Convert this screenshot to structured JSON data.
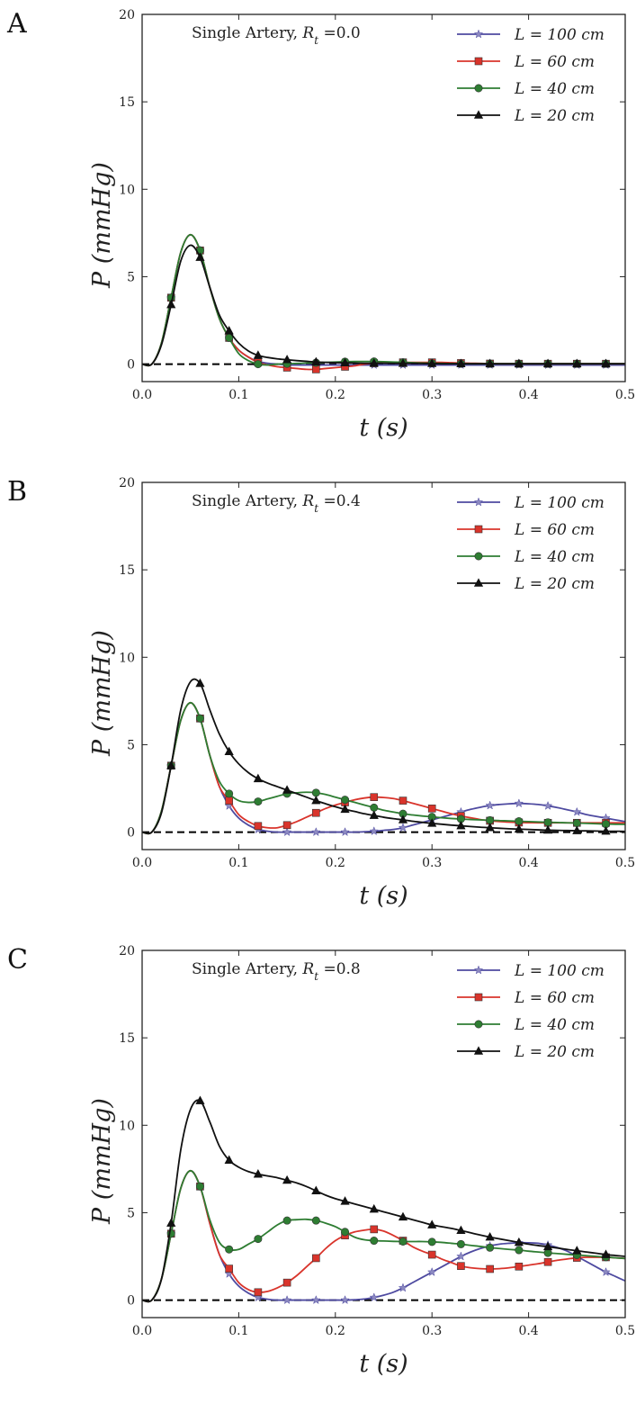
{
  "figure": {
    "tick_format": {
      "x_decimals": 1,
      "y_decimals": 0
    },
    "panels": [
      {
        "panel_label": "A",
        "annotation": "Single Artery, R_t =0.0"
      },
      {
        "panel_label": "B",
        "annotation": "Single Artery, R_t =0.4"
      },
      {
        "panel_label": "C",
        "annotation": "Single Artery, R_t =0.8"
      }
    ]
  },
  "chart_data": [
    {
      "type": "line",
      "title": "Single Artery, R_t =0.0",
      "xlabel": "t (s)",
      "ylabel": "P (mmHg)",
      "xlim": [
        0,
        0.5
      ],
      "ylim": [
        -1,
        20
      ],
      "x_ticks": [
        0.0,
        0.1,
        0.2,
        0.3,
        0.4,
        0.5
      ],
      "y_ticks": [
        0,
        5,
        10,
        15,
        20
      ],
      "grid": false,
      "legend_position": "top-right",
      "reference_line": {
        "y": 0,
        "style": "dashed",
        "color": "#000000"
      },
      "x": [
        0,
        0.01,
        0.02,
        0.03,
        0.04,
        0.05,
        0.06,
        0.07,
        0.08,
        0.09,
        0.1,
        0.11,
        0.12,
        0.13,
        0.14,
        0.15,
        0.16,
        0.17,
        0.18,
        0.19,
        0.2,
        0.21,
        0.22,
        0.23,
        0.24,
        0.25,
        0.26,
        0.27,
        0.28,
        0.29,
        0.3,
        0.31,
        0.32,
        0.33,
        0.34,
        0.35,
        0.36,
        0.37,
        0.38,
        0.39,
        0.4,
        0.41,
        0.42,
        0.43,
        0.44,
        0.45,
        0.46,
        0.47,
        0.48,
        0.49,
        0.5
      ],
      "marker_x": [
        0.03,
        0.06,
        0.09,
        0.12,
        0.15,
        0.18,
        0.21,
        0.24,
        0.27,
        0.3,
        0.33,
        0.36,
        0.39,
        0.42,
        0.45,
        0.48
      ],
      "series": [
        {
          "name": "L = 100 cm",
          "color": "#4e4aa0",
          "marker": "star",
          "values": [
            0,
            0,
            1.2,
            3.8,
            6.4,
            7.4,
            6.5,
            4.4,
            2.6,
            1.5,
            0.8,
            0.4,
            0.15,
            0.05,
            0,
            -0.05,
            -0.05,
            -0.05,
            -0.05,
            -0.05,
            -0.05,
            -0.05,
            -0.05,
            -0.05,
            -0.05,
            -0.05,
            -0.05,
            -0.05,
            -0.05,
            -0.05,
            -0.05,
            -0.05,
            -0.05,
            -0.05,
            -0.05,
            -0.05,
            -0.05,
            -0.05,
            -0.05,
            -0.05,
            -0.05,
            -0.05,
            -0.05,
            -0.05,
            -0.05,
            -0.05,
            -0.05,
            -0.05,
            -0.05,
            -0.05,
            -0.05
          ]
        },
        {
          "name": "L = 60 cm",
          "color": "#d9342b",
          "marker": "square",
          "values": [
            0,
            0,
            1.2,
            3.8,
            6.4,
            7.4,
            6.5,
            4.4,
            2.6,
            1.5,
            0.8,
            0.4,
            0.1,
            -0.05,
            -0.15,
            -0.2,
            -0.25,
            -0.3,
            -0.3,
            -0.25,
            -0.2,
            -0.15,
            -0.1,
            0,
            0.05,
            0.1,
            0.1,
            0.1,
            0.1,
            0.1,
            0.1,
            0.1,
            0.08,
            0.06,
            0.05,
            0.04,
            0.03,
            0.02,
            0.02,
            0.02,
            0.02,
            0.02,
            0.02,
            0.02,
            0.02,
            0.02,
            0.02,
            0.02,
            0.02,
            0.02,
            0.02
          ]
        },
        {
          "name": "L = 40 cm",
          "color": "#2e7d32",
          "marker": "circle",
          "values": [
            0,
            0,
            1.2,
            3.8,
            6.4,
            7.4,
            6.5,
            4.4,
            2.6,
            1.5,
            0.6,
            0.2,
            0,
            -0.05,
            0,
            0.02,
            0.04,
            0.06,
            0.08,
            0.1,
            0.12,
            0.14,
            0.15,
            0.15,
            0.15,
            0.14,
            0.12,
            0.1,
            0.08,
            0.06,
            0.05,
            0.04,
            0.03,
            0.02,
            0.02,
            0.02,
            0.02,
            0.02,
            0.02,
            0.02,
            0.02,
            0.02,
            0.02,
            0.02,
            0.02,
            0.02,
            0.02,
            0.02,
            0.02,
            0.02,
            0.02
          ]
        },
        {
          "name": "L = 20 cm",
          "color": "#111111",
          "marker": "triangle",
          "values": [
            0,
            0,
            1.1,
            3.4,
            5.9,
            6.8,
            6.1,
            4.4,
            2.8,
            1.9,
            1.2,
            0.75,
            0.5,
            0.38,
            0.3,
            0.25,
            0.2,
            0.16,
            0.12,
            0.1,
            0.08,
            0.07,
            0.06,
            0.05,
            0.05,
            0.05,
            0.04,
            0.04,
            0.04,
            0.03,
            0.03,
            0.02,
            0.02,
            0.02,
            0.02,
            0.02,
            0.02,
            0.02,
            0.02,
            0.02,
            0.02,
            0.02,
            0.02,
            0.02,
            0.02,
            0.02,
            0.02,
            0.02,
            0.02,
            0.02,
            0.02
          ]
        }
      ]
    },
    {
      "type": "line",
      "title": "Single Artery, R_t =0.4",
      "xlabel": "t (s)",
      "ylabel": "P (mmHg)",
      "xlim": [
        0,
        0.5
      ],
      "ylim": [
        -1,
        20
      ],
      "x_ticks": [
        0.0,
        0.1,
        0.2,
        0.3,
        0.4,
        0.5
      ],
      "y_ticks": [
        0,
        5,
        10,
        15,
        20
      ],
      "grid": false,
      "legend_position": "top-right",
      "reference_line": {
        "y": 0,
        "style": "dashed",
        "color": "#000000"
      },
      "x": [
        0,
        0.01,
        0.02,
        0.03,
        0.04,
        0.05,
        0.06,
        0.07,
        0.08,
        0.09,
        0.1,
        0.11,
        0.12,
        0.13,
        0.14,
        0.15,
        0.16,
        0.17,
        0.18,
        0.19,
        0.2,
        0.21,
        0.22,
        0.23,
        0.24,
        0.25,
        0.26,
        0.27,
        0.28,
        0.29,
        0.3,
        0.31,
        0.32,
        0.33,
        0.34,
        0.35,
        0.36,
        0.37,
        0.38,
        0.39,
        0.4,
        0.41,
        0.42,
        0.43,
        0.44,
        0.45,
        0.46,
        0.47,
        0.48,
        0.49,
        0.5
      ],
      "marker_x": [
        0.03,
        0.06,
        0.09,
        0.12,
        0.15,
        0.18,
        0.21,
        0.24,
        0.27,
        0.3,
        0.33,
        0.36,
        0.39,
        0.42,
        0.45,
        0.48
      ],
      "series": [
        {
          "name": "L = 100 cm",
          "color": "#4e4aa0",
          "marker": "star",
          "values": [
            0,
            0,
            1.2,
            3.8,
            6.4,
            7.4,
            6.5,
            4.4,
            2.6,
            1.5,
            0.8,
            0.4,
            0.15,
            0.05,
            0,
            0,
            0,
            0,
            0,
            0,
            0,
            0,
            0,
            0.02,
            0.05,
            0.1,
            0.15,
            0.25,
            0.4,
            0.55,
            0.7,
            0.85,
            1.0,
            1.15,
            1.3,
            1.42,
            1.52,
            1.58,
            1.62,
            1.64,
            1.62,
            1.58,
            1.5,
            1.4,
            1.28,
            1.15,
            1.0,
            0.9,
            0.8,
            0.7,
            0.6
          ]
        },
        {
          "name": "L = 60 cm",
          "color": "#d9342b",
          "marker": "square",
          "values": [
            0,
            0,
            1.2,
            3.8,
            6.4,
            7.4,
            6.5,
            4.4,
            2.6,
            1.8,
            1.0,
            0.6,
            0.35,
            0.25,
            0.25,
            0.4,
            0.6,
            0.85,
            1.1,
            1.35,
            1.55,
            1.7,
            1.85,
            1.95,
            2.0,
            1.98,
            1.92,
            1.8,
            1.65,
            1.5,
            1.35,
            1.2,
            1.05,
            0.92,
            0.82,
            0.72,
            0.65,
            0.6,
            0.57,
            0.55,
            0.54,
            0.53,
            0.53,
            0.53,
            0.53,
            0.53,
            0.53,
            0.53,
            0.53,
            0.53,
            0.53
          ]
        },
        {
          "name": "L = 40 cm",
          "color": "#2e7d32",
          "marker": "circle",
          "values": [
            0,
            0,
            1.2,
            3.8,
            6.4,
            7.4,
            6.5,
            4.4,
            2.9,
            2.2,
            1.8,
            1.7,
            1.75,
            1.9,
            2.05,
            2.2,
            2.25,
            2.28,
            2.25,
            2.15,
            2.0,
            1.85,
            1.7,
            1.55,
            1.4,
            1.25,
            1.15,
            1.05,
            0.98,
            0.92,
            0.87,
            0.82,
            0.78,
            0.75,
            0.72,
            0.7,
            0.68,
            0.66,
            0.64,
            0.62,
            0.6,
            0.58,
            0.56,
            0.55,
            0.53,
            0.52,
            0.5,
            0.48,
            0.46,
            0.45,
            0.44
          ]
        },
        {
          "name": "L = 20 cm",
          "color": "#111111",
          "marker": "triangle",
          "values": [
            0,
            0,
            1.1,
            3.8,
            7.0,
            8.6,
            8.5,
            7.0,
            5.6,
            4.6,
            3.9,
            3.4,
            3.05,
            2.8,
            2.6,
            2.4,
            2.2,
            2.0,
            1.8,
            1.62,
            1.45,
            1.3,
            1.18,
            1.05,
            0.95,
            0.85,
            0.77,
            0.7,
            0.62,
            0.56,
            0.5,
            0.45,
            0.4,
            0.36,
            0.32,
            0.28,
            0.25,
            0.22,
            0.19,
            0.17,
            0.15,
            0.13,
            0.11,
            0.1,
            0.09,
            0.08,
            0.07,
            0.06,
            0.05,
            0.05,
            0.04
          ]
        }
      ]
    },
    {
      "type": "line",
      "title": "Single Artery, R_t =0.8",
      "xlabel": "t (s)",
      "ylabel": "P (mmHg)",
      "xlim": [
        0,
        0.5
      ],
      "ylim": [
        -1,
        20
      ],
      "x_ticks": [
        0.0,
        0.1,
        0.2,
        0.3,
        0.4,
        0.5
      ],
      "y_ticks": [
        0,
        5,
        10,
        15,
        20
      ],
      "grid": false,
      "legend_position": "top-right",
      "reference_line": {
        "y": 0,
        "style": "dashed",
        "color": "#000000"
      },
      "x": [
        0,
        0.01,
        0.02,
        0.03,
        0.04,
        0.05,
        0.06,
        0.07,
        0.08,
        0.09,
        0.1,
        0.11,
        0.12,
        0.13,
        0.14,
        0.15,
        0.16,
        0.17,
        0.18,
        0.19,
        0.2,
        0.21,
        0.22,
        0.23,
        0.24,
        0.25,
        0.26,
        0.27,
        0.28,
        0.29,
        0.3,
        0.31,
        0.32,
        0.33,
        0.34,
        0.35,
        0.36,
        0.37,
        0.38,
        0.39,
        0.4,
        0.41,
        0.42,
        0.43,
        0.44,
        0.45,
        0.46,
        0.47,
        0.48,
        0.49,
        0.5
      ],
      "marker_x": [
        0.03,
        0.06,
        0.09,
        0.12,
        0.15,
        0.18,
        0.21,
        0.24,
        0.27,
        0.3,
        0.33,
        0.36,
        0.39,
        0.42,
        0.45,
        0.48
      ],
      "series": [
        {
          "name": "L = 100 cm",
          "color": "#4e4aa0",
          "marker": "star",
          "values": [
            0,
            0,
            1.2,
            3.8,
            6.4,
            7.4,
            6.5,
            4.4,
            2.6,
            1.5,
            0.8,
            0.4,
            0.15,
            0.05,
            0,
            0,
            0,
            0,
            0,
            0,
            0,
            0,
            0.02,
            0.06,
            0.15,
            0.28,
            0.45,
            0.7,
            1.0,
            1.3,
            1.6,
            1.9,
            2.2,
            2.5,
            2.75,
            2.95,
            3.1,
            3.2,
            3.25,
            3.28,
            3.28,
            3.25,
            3.15,
            3.0,
            2.8,
            2.5,
            2.2,
            1.9,
            1.6,
            1.35,
            1.1
          ]
        },
        {
          "name": "L = 60 cm",
          "color": "#d9342b",
          "marker": "square",
          "values": [
            0,
            0,
            1.2,
            3.8,
            6.4,
            7.4,
            6.5,
            4.4,
            2.6,
            1.8,
            1.0,
            0.6,
            0.45,
            0.5,
            0.7,
            1.0,
            1.4,
            1.9,
            2.4,
            2.95,
            3.4,
            3.7,
            3.9,
            4.0,
            4.05,
            3.95,
            3.7,
            3.4,
            3.05,
            2.8,
            2.6,
            2.35,
            2.15,
            1.95,
            1.85,
            1.8,
            1.78,
            1.8,
            1.85,
            1.92,
            2.0,
            2.08,
            2.18,
            2.28,
            2.35,
            2.42,
            2.45,
            2.45,
            2.45,
            2.42,
            2.38
          ]
        },
        {
          "name": "L = 40 cm",
          "color": "#2e7d32",
          "marker": "circle",
          "values": [
            0,
            0,
            1.2,
            3.8,
            6.4,
            7.4,
            6.5,
            4.6,
            3.3,
            2.9,
            2.9,
            3.2,
            3.5,
            3.9,
            4.3,
            4.55,
            4.6,
            4.62,
            4.55,
            4.4,
            4.2,
            3.9,
            3.6,
            3.45,
            3.4,
            3.38,
            3.36,
            3.35,
            3.35,
            3.35,
            3.33,
            3.3,
            3.25,
            3.2,
            3.13,
            3.07,
            3.0,
            2.95,
            2.9,
            2.86,
            2.8,
            2.75,
            2.7,
            2.66,
            2.62,
            2.58,
            2.54,
            2.5,
            2.46,
            2.42,
            2.38
          ]
        },
        {
          "name": "L = 20 cm",
          "color": "#111111",
          "marker": "triangle",
          "values": [
            0,
            0,
            1.2,
            4.4,
            8.6,
            10.9,
            11.4,
            10.2,
            8.8,
            8.0,
            7.6,
            7.35,
            7.2,
            7.1,
            7.0,
            6.85,
            6.7,
            6.5,
            6.25,
            6.0,
            5.8,
            5.65,
            5.5,
            5.35,
            5.2,
            5.05,
            4.9,
            4.75,
            4.6,
            4.45,
            4.3,
            4.2,
            4.1,
            3.98,
            3.85,
            3.72,
            3.6,
            3.5,
            3.4,
            3.3,
            3.2,
            3.12,
            3.05,
            2.98,
            2.9,
            2.82,
            2.75,
            2.68,
            2.6,
            2.55,
            2.5
          ]
        }
      ]
    }
  ]
}
